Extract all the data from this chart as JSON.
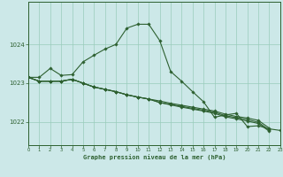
{
  "title": "Graphe pression niveau de la mer (hPa)",
  "bg_color": "#cce8e8",
  "grid_color": "#99ccbb",
  "line_color": "#2d6030",
  "xlim": [
    0,
    23
  ],
  "ylim": [
    1021.4,
    1025.1
  ],
  "xticks": [
    0,
    1,
    2,
    3,
    4,
    5,
    6,
    7,
    8,
    9,
    10,
    11,
    12,
    13,
    14,
    15,
    16,
    17,
    18,
    19,
    20,
    21,
    22,
    23
  ],
  "yticks": [
    1022,
    1023,
    1024
  ],
  "series": [
    [
      1023.15,
      1023.15,
      1023.38,
      1023.2,
      1023.22,
      1023.55,
      1023.72,
      1023.88,
      1024.0,
      1024.42,
      1024.52,
      1024.52,
      1024.1,
      1023.3,
      1023.05,
      1022.78,
      1022.52,
      1022.12,
      1022.18,
      1022.22,
      1021.88,
      1021.9,
      1021.82,
      1021.78
    ],
    [
      1023.15,
      1023.05,
      1023.05,
      1023.05,
      1023.1,
      1023.0,
      1022.9,
      1022.84,
      1022.78,
      1022.7,
      1022.64,
      1022.59,
      1022.54,
      1022.48,
      1022.43,
      1022.38,
      1022.33,
      1022.28,
      1022.2,
      1022.14,
      1022.1,
      1022.04,
      1021.84,
      null
    ],
    [
      1023.15,
      1023.05,
      1023.05,
      1023.05,
      1023.1,
      1023.0,
      1022.9,
      1022.84,
      1022.78,
      1022.7,
      1022.64,
      1022.59,
      1022.5,
      1022.45,
      1022.4,
      1022.35,
      1022.3,
      1022.25,
      1022.16,
      1022.11,
      1022.06,
      1021.99,
      1021.79,
      null
    ],
    [
      1023.15,
      1023.05,
      1023.05,
      1023.05,
      1023.1,
      1023.0,
      1022.9,
      1022.84,
      1022.78,
      1022.7,
      1022.64,
      1022.59,
      1022.5,
      1022.44,
      1022.38,
      1022.33,
      1022.28,
      1022.22,
      1022.13,
      1022.08,
      1022.02,
      1021.96,
      1021.76,
      null
    ]
  ]
}
